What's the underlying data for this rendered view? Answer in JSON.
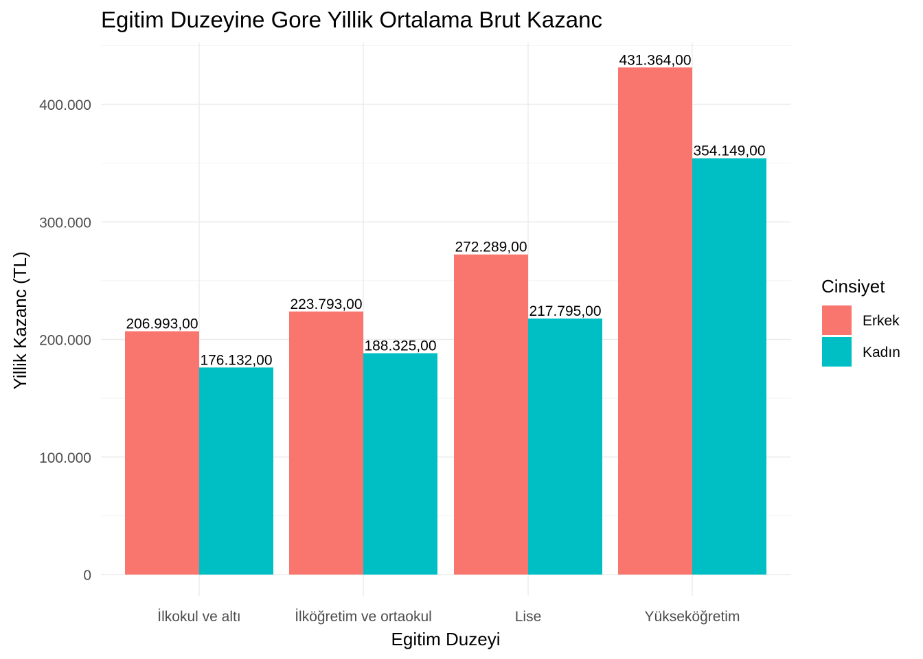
{
  "chart_data": {
    "type": "bar",
    "title": "Egitim Duzeyine Gore Yillik Ortalama Brut Kazanc",
    "xlabel": "Egitim Duzeyi",
    "ylabel": "Yillik Kazanc (TL)",
    "categories": [
      "İlkokul ve altı",
      "İlköğretim ve ortaokul",
      "Lise",
      "Yükseköğretim"
    ],
    "series": [
      {
        "name": "Erkek",
        "color": "#F8766D",
        "values": [
          206993,
          223793,
          272289,
          431364
        ],
        "labels": [
          "206.993,00",
          "223.793,00",
          "272.289,00",
          "431.364,00"
        ]
      },
      {
        "name": "Kadın",
        "color": "#00BFC4",
        "values": [
          176132,
          188325,
          217795,
          354149
        ],
        "labels": [
          "176.132,00",
          "188.325,00",
          "217.795,00",
          "354.149,00"
        ]
      }
    ],
    "yticks": [
      0,
      100000,
      200000,
      300000,
      400000
    ],
    "ytick_labels": [
      "0",
      "100.000",
      "200.000",
      "300.000",
      "400.000"
    ],
    "ylim": [
      0,
      450000
    ],
    "grid": true,
    "legend": {
      "title": "Cinsiyet",
      "position": "right"
    }
  }
}
